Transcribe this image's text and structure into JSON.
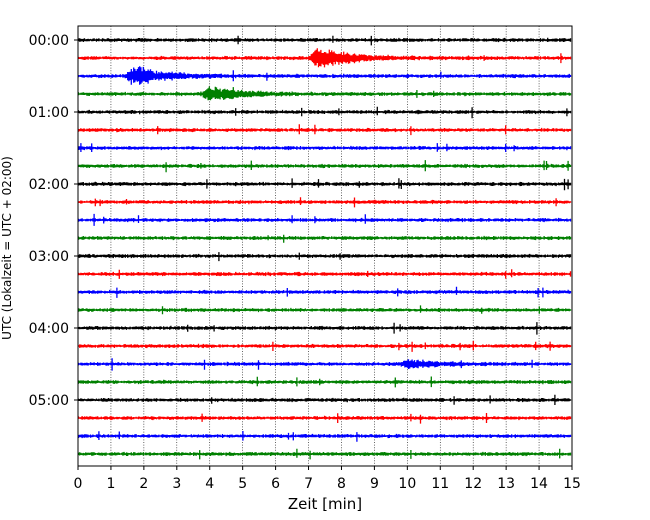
{
  "chart_data": {
    "type": "line",
    "title": "",
    "xlabel": "Zeit  [min]",
    "ylabel": "UTC (Lokalzeit = UTC + 02:00)",
    "xlim": [
      0,
      15
    ],
    "x_ticks": [
      "0",
      "1",
      "2",
      "3",
      "4",
      "5",
      "6",
      "7",
      "8",
      "9",
      "10",
      "11",
      "12",
      "13",
      "14",
      "15"
    ],
    "y_ticks": [
      "00:00",
      "01:00",
      "02:00",
      "03:00",
      "04:00",
      "05:00"
    ],
    "grid": "vertical-dotted",
    "trace_interval_min": 15,
    "trace_colors": [
      "#000000",
      "#ff0000",
      "#0000ff",
      "#008000"
    ],
    "traces": [
      {
        "start": "00:00",
        "color": "#000000"
      },
      {
        "start": "00:15",
        "color": "#ff0000",
        "event_min": 7.3,
        "event_amp": 1.0
      },
      {
        "start": "00:30",
        "color": "#0000ff",
        "event_min": 1.7,
        "event_amp": 0.8
      },
      {
        "start": "00:45",
        "color": "#008000",
        "event_min": 4.0,
        "event_amp": 0.6
      },
      {
        "start": "01:00",
        "color": "#000000"
      },
      {
        "start": "01:15",
        "color": "#ff0000"
      },
      {
        "start": "01:30",
        "color": "#0000ff"
      },
      {
        "start": "01:45",
        "color": "#008000"
      },
      {
        "start": "02:00",
        "color": "#000000"
      },
      {
        "start": "02:15",
        "color": "#ff0000"
      },
      {
        "start": "02:30",
        "color": "#0000ff"
      },
      {
        "start": "02:45",
        "color": "#008000"
      },
      {
        "start": "03:00",
        "color": "#000000"
      },
      {
        "start": "03:15",
        "color": "#ff0000"
      },
      {
        "start": "03:30",
        "color": "#0000ff"
      },
      {
        "start": "03:45",
        "color": "#008000"
      },
      {
        "start": "04:00",
        "color": "#000000"
      },
      {
        "start": "04:15",
        "color": "#ff0000"
      },
      {
        "start": "04:30",
        "color": "#0000ff",
        "event_min": 10.0,
        "event_amp": 0.35
      },
      {
        "start": "04:45",
        "color": "#008000"
      },
      {
        "start": "05:00",
        "color": "#000000"
      },
      {
        "start": "05:15",
        "color": "#ff0000"
      },
      {
        "start": "05:30",
        "color": "#0000ff"
      },
      {
        "start": "05:45",
        "color": "#008000"
      }
    ]
  }
}
